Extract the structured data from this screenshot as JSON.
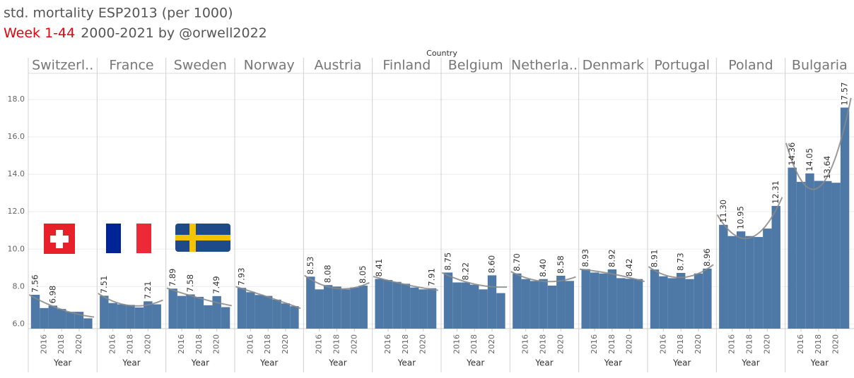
{
  "chart_data": {
    "type": "bar",
    "title": "std. mortality ESP2013  (per 1000)",
    "subtitle_highlight": "Week 1-44",
    "subtitle": "2000-2021 by @orwell2022",
    "column_header": "Country",
    "xlabel": "Year",
    "x": [
      2015,
      2016,
      2017,
      2018,
      2019,
      2020,
      2021
    ],
    "xticks": [
      2016,
      2018,
      2020
    ],
    "ylim": [
      5.75,
      19.4
    ],
    "yticks": [
      {
        "value": 6,
        "label": "6.0"
      },
      {
        "value": 8,
        "label": "8.0"
      },
      {
        "value": 10,
        "label": "10.0"
      },
      {
        "value": 12,
        "label": "12.0"
      },
      {
        "value": 14,
        "label": "14.0"
      },
      {
        "value": 16,
        "label": "16.0"
      },
      {
        "value": 18,
        "label": "18.0"
      }
    ],
    "grid": true,
    "color": "#4e79a7",
    "trend_color": "#888888",
    "panels": [
      {
        "name": "Switzerl..",
        "values": [
          7.56,
          6.85,
          6.98,
          6.8,
          6.65,
          6.65,
          6.3
        ],
        "value_labels": [
          "7.56",
          null,
          "6.98",
          null,
          null,
          null,
          null
        ]
      },
      {
        "name": "France",
        "values": [
          7.51,
          7.12,
          7.05,
          7.02,
          6.88,
          7.21,
          7.05
        ],
        "value_labels": [
          "7.51",
          null,
          null,
          null,
          null,
          "7.21",
          null
        ]
      },
      {
        "name": "Sweden",
        "values": [
          7.89,
          7.5,
          7.58,
          7.45,
          7.0,
          7.49,
          6.9
        ],
        "value_labels": [
          "7.89",
          null,
          "7.58",
          null,
          null,
          "7.49",
          null
        ]
      },
      {
        "name": "Norway",
        "values": [
          7.93,
          7.7,
          7.55,
          7.5,
          7.3,
          7.1,
          6.95
        ],
        "value_labels": [
          "7.93",
          null,
          null,
          null,
          null,
          null,
          null
        ]
      },
      {
        "name": "Austria",
        "values": [
          8.53,
          7.85,
          8.08,
          8.0,
          7.85,
          7.95,
          8.05
        ],
        "value_labels": [
          "8.53",
          null,
          "8.08",
          null,
          null,
          null,
          "8.05"
        ]
      },
      {
        "name": "Finland",
        "values": [
          8.41,
          8.35,
          8.25,
          8.15,
          7.95,
          7.85,
          7.91
        ],
        "value_labels": [
          "8.41",
          null,
          null,
          null,
          null,
          null,
          "7.91"
        ]
      },
      {
        "name": "Belgium",
        "values": [
          8.75,
          8.22,
          8.22,
          8.1,
          7.85,
          8.6,
          7.65
        ],
        "value_labels": [
          "8.75",
          null,
          "8.22",
          null,
          null,
          "8.60",
          null
        ]
      },
      {
        "name": "Netherla..",
        "values": [
          8.7,
          8.4,
          8.3,
          8.4,
          8.05,
          8.58,
          8.3
        ],
        "value_labels": [
          "8.70",
          null,
          null,
          "8.40",
          null,
          "8.58",
          null
        ]
      },
      {
        "name": "Denmark",
        "values": [
          8.93,
          8.75,
          8.7,
          8.92,
          8.45,
          8.42,
          8.4
        ],
        "value_labels": [
          "8.93",
          null,
          null,
          "8.92",
          null,
          "8.42",
          null
        ]
      },
      {
        "name": "Portugal",
        "values": [
          8.91,
          8.55,
          8.45,
          8.73,
          8.4,
          8.7,
          8.96
        ],
        "value_labels": [
          "8.91",
          null,
          null,
          "8.73",
          null,
          null,
          "8.96"
        ]
      },
      {
        "name": "Poland",
        "values": [
          11.3,
          10.7,
          10.95,
          10.7,
          10.65,
          11.1,
          12.31
        ],
        "value_labels": [
          "11.30",
          null,
          "10.95",
          null,
          null,
          null,
          "12.31"
        ]
      },
      {
        "name": "Bulgaria",
        "values": [
          14.36,
          13.6,
          14.05,
          13.65,
          13.64,
          13.55,
          17.57
        ],
        "value_labels": [
          "14.36",
          null,
          "14.05",
          null,
          "13.64",
          null,
          "17.57"
        ]
      }
    ]
  }
}
